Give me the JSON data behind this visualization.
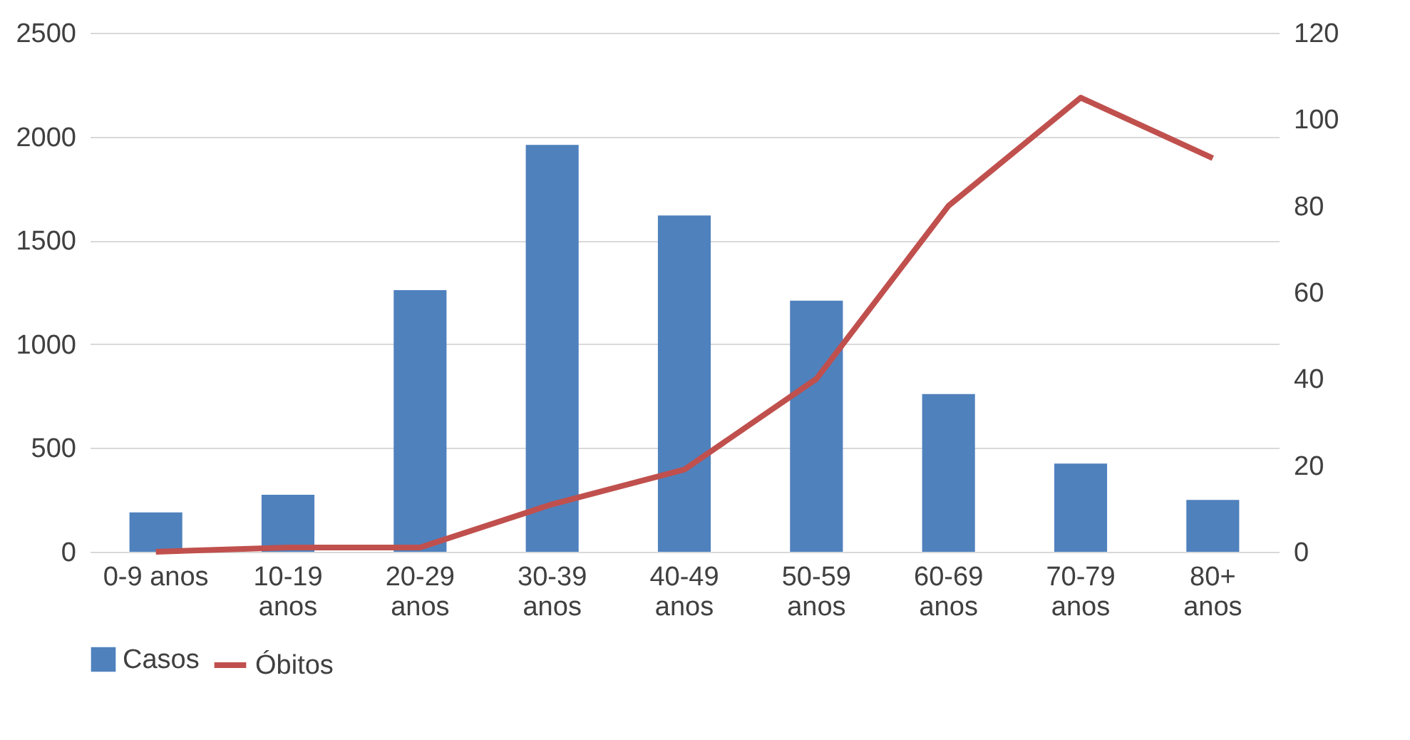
{
  "chart_data": {
    "type": "bar",
    "categories": [
      "0-9 anos",
      "10-19 anos",
      "20-29 anos",
      "30-39 anos",
      "40-49 anos",
      "50-59 anos",
      "60-69 anos",
      "70-79 anos",
      "80+ anos"
    ],
    "series": [
      {
        "name": "Casos",
        "color": "#4f81bd",
        "values": [
          190,
          275,
          1260,
          1960,
          1620,
          1210,
          760,
          425,
          250
        ]
      },
      {
        "name": "Óbitos",
        "type": "line",
        "axis": "y2",
        "color": "#c0504d",
        "values": [
          0,
          1,
          1,
          11,
          19,
          40,
          80,
          105,
          91
        ]
      }
    ],
    "ylim": [
      0,
      2500
    ],
    "yticks": [
      0,
      500,
      1000,
      1500,
      2000,
      2500
    ],
    "y2lim": [
      0,
      120
    ],
    "y2ticks": [
      0,
      20,
      40,
      60,
      80,
      100,
      120
    ],
    "grid": "y",
    "legend": "bottom",
    "marker": "none",
    "line_style": "solid"
  }
}
